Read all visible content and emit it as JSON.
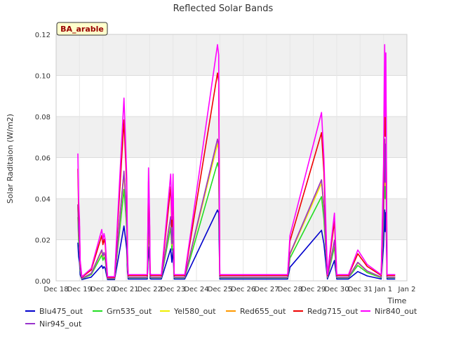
{
  "chart_data": {
    "type": "line",
    "title": "Reflected Solar Bands",
    "ylabel": "Solar Raditaion (W/m2)",
    "xlabel": "Time",
    "annotation": "BA_arable",
    "ylim": [
      0,
      0.12
    ],
    "xlim": [
      0,
      15
    ],
    "yticks": [
      0.0,
      0.02,
      0.04,
      0.06,
      0.08,
      0.1,
      0.12
    ],
    "ytick_labels": [
      "0.00",
      "0.02",
      "0.04",
      "0.06",
      "0.08",
      "0.10",
      "0.12"
    ],
    "xticks": [
      0,
      1,
      2,
      3,
      4,
      5,
      6,
      7,
      8,
      9,
      10,
      11,
      12,
      13,
      14,
      15
    ],
    "xtick_labels": [
      "Dec 18",
      "Dec 19",
      "Dec 20",
      "Dec 21",
      "Dec 22",
      "Dec 23",
      "Dec 24",
      "Dec 25",
      "Dec 26",
      "Dec 27",
      "Dec 28",
      "Dec 29",
      "Dec 30",
      "Dec 31",
      "Jan 1",
      "Jan 2"
    ],
    "grid": true,
    "legend_position": "bottom",
    "series": [
      {
        "name": "Blu475_out",
        "color": "#0000cc",
        "scale": 0.3
      },
      {
        "name": "Grn535_out",
        "color": "#22dd22",
        "scale": 0.5
      },
      {
        "name": "Yel580_out",
        "color": "#eeee00",
        "scale": 0.58
      },
      {
        "name": "Red655_out",
        "color": "#ff9900",
        "scale": 0.6
      },
      {
        "name": "Redg715_out",
        "color": "#ee0000",
        "scale": 0.88
      },
      {
        "name": "Nir840_out",
        "color": "#ff00ff",
        "scale": 1.0
      },
      {
        "name": "Nir945_out",
        "color": "#9933cc",
        "scale": 0.6
      }
    ],
    "x": [
      0.93,
      0.96,
      1.0,
      1.03,
      1.1,
      1.5,
      1.95,
      2.0,
      2.05,
      2.1,
      2.15,
      2.2,
      2.25,
      2.3,
      2.5,
      2.9,
      2.98,
      3.02,
      3.05,
      3.08,
      3.12,
      3.2,
      3.5,
      3.9,
      3.95,
      4.0,
      4.02,
      4.05,
      4.1,
      4.5,
      4.9,
      4.95,
      5.0,
      5.05,
      5.1,
      5.5,
      6.9,
      6.95,
      7.0,
      7.05,
      7.1,
      8.0,
      9.9,
      10.0,
      11.35,
      11.45,
      11.6,
      11.9,
      12.0,
      12.1,
      12.5,
      12.9,
      13.3,
      13.9,
      14.0,
      14.05,
      14.07,
      14.1,
      14.15,
      14.2,
      14.5
    ],
    "envelope": [
      0.062,
      0.04,
      0.03,
      0.01,
      0.002,
      0.006,
      0.025,
      0.02,
      0.023,
      0.02,
      0.01,
      0.002,
      0.002,
      0.002,
      0.002,
      0.089,
      0.065,
      0.05,
      0.015,
      0.003,
      0.003,
      0.003,
      0.003,
      0.003,
      0.055,
      0.03,
      0.004,
      0.003,
      0.003,
      0.003,
      0.052,
      0.03,
      0.052,
      0.003,
      0.003,
      0.003,
      0.115,
      0.11,
      0.003,
      0.003,
      0.003,
      0.003,
      0.003,
      0.022,
      0.082,
      0.06,
      0.003,
      0.033,
      0.003,
      0.003,
      0.003,
      0.015,
      0.008,
      0.003,
      0.057,
      0.115,
      0.08,
      0.111,
      0.003,
      0.003,
      0.003
    ]
  }
}
